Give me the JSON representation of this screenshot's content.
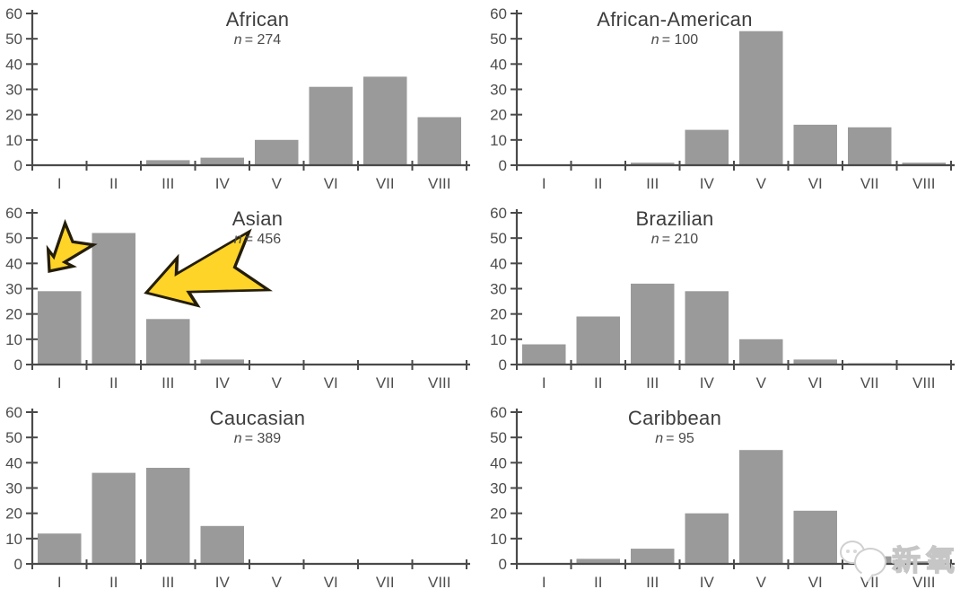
{
  "page": {
    "background": "#ffffff"
  },
  "style": {
    "bar_color": "#9a9a9a",
    "axis_color": "#4a4a4a",
    "tick_label_color": "#4d4d4d",
    "title_color": "#3d3d3d",
    "arrow_fill": "#ffd428",
    "arrow_stroke": "#241d08"
  },
  "watermark": {
    "icon": "chick-mascot-icon",
    "text": "新氧",
    "text_color": "#ffffff",
    "outline_color": "#c6c6c6"
  },
  "chart_data": [
    {
      "type": "bar",
      "title": "African",
      "n_prefix": "n",
      "n_suffix": "= 274",
      "n": 274,
      "categories": [
        "I",
        "II",
        "III",
        "IV",
        "V",
        "VI",
        "VII",
        "VIII"
      ],
      "values": [
        0,
        0,
        2,
        3,
        10,
        31,
        35,
        19
      ],
      "ylim": [
        0,
        60
      ],
      "yticks": [
        0,
        10,
        20,
        30,
        40,
        50,
        60
      ],
      "grid": false
    },
    {
      "type": "bar",
      "title": "African-American",
      "n_prefix": "n",
      "n_suffix": "= 100",
      "n": 100,
      "categories": [
        "I",
        "II",
        "III",
        "IV",
        "V",
        "VI",
        "VII",
        "VIII"
      ],
      "values": [
        0,
        0,
        1,
        14,
        53,
        16,
        15,
        1
      ],
      "ylim": [
        0,
        60
      ],
      "yticks": [
        0,
        10,
        20,
        30,
        40,
        50,
        60
      ],
      "grid": false
    },
    {
      "type": "bar",
      "title": "Asian",
      "n_prefix": "n",
      "n_suffix": "= 456",
      "n": 456,
      "categories": [
        "I",
        "II",
        "III",
        "IV",
        "V",
        "VI",
        "VII",
        "VIII"
      ],
      "values": [
        29,
        52,
        18,
        2,
        0,
        0,
        0,
        0
      ],
      "ylim": [
        0,
        60
      ],
      "yticks": [
        0,
        10,
        20,
        30,
        40,
        50,
        60
      ],
      "grid": false,
      "annotations": [
        {
          "icon": "highlight-arrow-small-icon",
          "target_category": "I"
        },
        {
          "icon": "highlight-arrow-large-icon",
          "target_category": "II"
        }
      ]
    },
    {
      "type": "bar",
      "title": "Brazilian",
      "n_prefix": "n",
      "n_suffix": "= 210",
      "n": 210,
      "categories": [
        "I",
        "II",
        "III",
        "IV",
        "V",
        "VI",
        "VII",
        "VIII"
      ],
      "values": [
        8,
        19,
        32,
        29,
        10,
        2,
        0.5,
        0
      ],
      "ylim": [
        0,
        60
      ],
      "yticks": [
        0,
        10,
        20,
        30,
        40,
        50,
        60
      ],
      "grid": false
    },
    {
      "type": "bar",
      "title": "Caucasian",
      "n_prefix": "n",
      "n_suffix": "= 389",
      "n": 389,
      "categories": [
        "I",
        "II",
        "III",
        "IV",
        "V",
        "VI",
        "VII",
        "VIII"
      ],
      "values": [
        12,
        36,
        38,
        15,
        0,
        0,
        0,
        0
      ],
      "ylim": [
        0,
        60
      ],
      "yticks": [
        0,
        10,
        20,
        30,
        40,
        50,
        60
      ],
      "grid": false
    },
    {
      "type": "bar",
      "title": "Caribbean",
      "n_prefix": "n",
      "n_suffix": "= 95",
      "n": 95,
      "categories": [
        "I",
        "II",
        "III",
        "IV",
        "V",
        "VI",
        "VII",
        "VIII"
      ],
      "values": [
        0,
        2,
        6,
        20,
        45,
        21,
        3,
        1
      ],
      "ylim": [
        0,
        60
      ],
      "yticks": [
        0,
        10,
        20,
        30,
        40,
        50,
        60
      ],
      "grid": false
    }
  ]
}
